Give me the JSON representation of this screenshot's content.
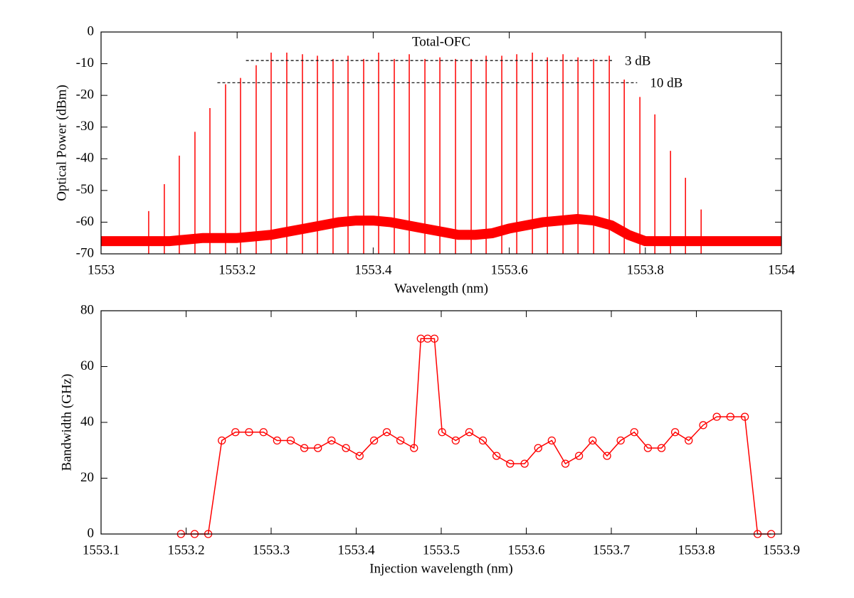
{
  "chart_data": [
    {
      "type": "spectrum",
      "xlabel": "Wavelength (nm)",
      "ylabel": "Optical Power (dBm)",
      "xlim": [
        1553,
        1554
      ],
      "ylim": [
        -70,
        0
      ],
      "xticks": [
        1553,
        1553.2,
        1553.4,
        1553.6,
        1553.8,
        1554
      ],
      "yticks": [
        -70,
        -60,
        -50,
        -40,
        -30,
        -20,
        -10,
        0
      ],
      "annotations": [
        {
          "text": "Total-OFC"
        }
      ],
      "levels": [
        {
          "label": "3 dB",
          "y": -9,
          "x": [
            1553.213,
            1553.751
          ]
        },
        {
          "label": "10 dB",
          "y": -16,
          "x": [
            1553.171,
            1553.788
          ]
        }
      ],
      "series": [
        {
          "style": "line",
          "color": "#ff0000",
          "x": [
            1553.0,
            1553.025,
            1553.05,
            1553.075,
            1553.1,
            1553.125,
            1553.15,
            1553.175,
            1553.2,
            1553.225,
            1553.25,
            1553.275,
            1553.3,
            1553.325,
            1553.35,
            1553.375,
            1553.4,
            1553.425,
            1553.45,
            1553.475,
            1553.5,
            1553.525,
            1553.55,
            1553.575,
            1553.6,
            1553.625,
            1553.65,
            1553.675,
            1553.7,
            1553.725,
            1553.75,
            1553.775,
            1553.8,
            1553.825,
            1553.85,
            1553.875,
            1553.9,
            1553.925,
            1553.95,
            1553.975,
            1554.0
          ],
          "values": [
            -66,
            -66,
            -66,
            -66,
            -66,
            -65.5,
            -65,
            -65,
            -65,
            -64.5,
            -64,
            -63,
            -62,
            -61,
            -60,
            -59.5,
            -59.5,
            -60,
            -61,
            -62,
            -63,
            -64,
            -64,
            -63.5,
            -62,
            -61,
            -60,
            -59.5,
            -59,
            -59.5,
            -61,
            -64,
            -66,
            -66,
            -66,
            -66,
            -66,
            -66,
            -66,
            -66,
            -66
          ]
        },
        {
          "style": "stem",
          "color": "#ff0000",
          "x": [
            1553.07,
            1553.093,
            1553.115,
            1553.138,
            1553.16,
            1553.183,
            1553.205,
            1553.228,
            1553.25,
            1553.273,
            1553.296,
            1553.318,
            1553.341,
            1553.363,
            1553.386,
            1553.408,
            1553.431,
            1553.453,
            1553.476,
            1553.498,
            1553.521,
            1553.544,
            1553.566,
            1553.589,
            1553.611,
            1553.634,
            1553.656,
            1553.679,
            1553.701,
            1553.724,
            1553.747,
            1553.769,
            1553.792,
            1553.814,
            1553.837,
            1553.859,
            1553.882
          ],
          "values": [
            -56.5,
            -48,
            -39,
            -31.5,
            -24,
            -16.5,
            -14.5,
            -10.5,
            -6.5,
            -6.5,
            -7,
            -7.5,
            -8.5,
            -7.5,
            -8.5,
            -6.5,
            -8.5,
            -7,
            -8.5,
            -8,
            -8.5,
            -8.5,
            -7.5,
            -7.5,
            -7,
            -6.5,
            -8,
            -7,
            -8,
            -8.5,
            -7.5,
            -15,
            -20.5,
            -26,
            -37.5,
            -46,
            -56
          ]
        }
      ]
    },
    {
      "type": "line",
      "marker": "circle",
      "xlabel": "Injection wavelength (nm)",
      "ylabel": "Bandwidth (GHz)",
      "xlim": [
        1553.1,
        1553.9
      ],
      "ylim": [
        0,
        80
      ],
      "xticks": [
        1553.1,
        1553.2,
        1553.3,
        1553.4,
        1553.5,
        1553.6,
        1553.7,
        1553.8,
        1553.9
      ],
      "yticks": [
        0,
        20,
        40,
        60,
        80
      ],
      "series": [
        {
          "color": "#ff0000",
          "x": [
            1553.194,
            1553.21,
            1553.226,
            1553.242,
            1553.258,
            1553.274,
            1553.291,
            1553.307,
            1553.323,
            1553.339,
            1553.355,
            1553.371,
            1553.388,
            1553.404,
            1553.421,
            1553.436,
            1553.452,
            1553.468,
            1553.476,
            1553.484,
            1553.492,
            1553.501,
            1553.517,
            1553.533,
            1553.549,
            1553.565,
            1553.581,
            1553.598,
            1553.614,
            1553.63,
            1553.646,
            1553.662,
            1553.678,
            1553.695,
            1553.711,
            1553.727,
            1553.743,
            1553.759,
            1553.775,
            1553.791,
            1553.808,
            1553.824,
            1553.84,
            1553.857,
            1553.872,
            1553.888
          ],
          "values": [
            0,
            0,
            0,
            33.5,
            36.5,
            36.5,
            36.5,
            33.5,
            33.5,
            30.8,
            30.8,
            33.5,
            30.8,
            28,
            33.5,
            36.5,
            33.5,
            30.8,
            70,
            70,
            70,
            36.5,
            33.5,
            36.5,
            33.5,
            28,
            25.2,
            25.2,
            30.8,
            33.5,
            25.2,
            28,
            33.5,
            28,
            33.5,
            36.5,
            30.8,
            30.8,
            36.5,
            33.5,
            39,
            42,
            42,
            42,
            0,
            0
          ]
        }
      ]
    }
  ]
}
